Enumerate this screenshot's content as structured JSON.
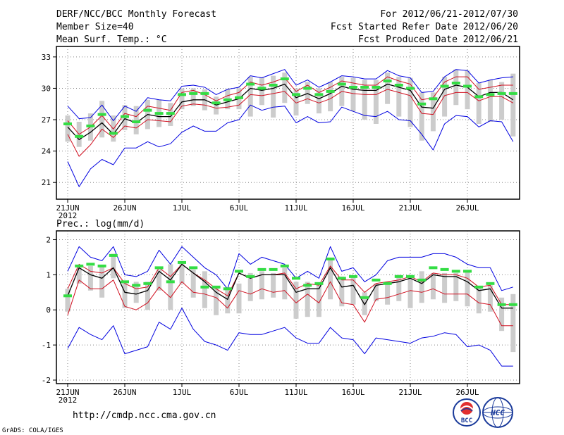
{
  "header": {
    "title": "DERF/NCC/BCC Monthly Forecast",
    "member": "Member Size=40",
    "variable": "Mean Surf. Temp.: °C",
    "period": "For 2012/06/21-2012/07/30",
    "started": "Fcst Started Refer Date 2012/06/20",
    "produced": "Fcst Produced Date 2012/06/21"
  },
  "footer": {
    "url": "http://cmdp.ncc.cma.gov.cn",
    "credit": "GrADS: COLA/IGES",
    "logo1": "BCC",
    "logo2": "NCC"
  },
  "colors": {
    "max_min": "#0000e0",
    "spread": "#d01020",
    "median": "#000000",
    "mean_mark": "#33dd44",
    "box": "#cccccc",
    "grid": "#888888"
  },
  "chart_data": [
    {
      "type": "line",
      "title": "Mean Surf. Temp.: °C",
      "ylim": [
        19.4,
        34
      ],
      "yticks": [
        21,
        24,
        27,
        30,
        33
      ],
      "xticks": [
        {
          "day": 0,
          "label": "21JUN"
        },
        {
          "day": 5,
          "label": "26JUN"
        },
        {
          "day": 10,
          "label": "1JUL"
        },
        {
          "day": 15,
          "label": "6JUL"
        },
        {
          "day": 20,
          "label": "11JUL"
        },
        {
          "day": 25,
          "label": "16JUL"
        },
        {
          "day": 30,
          "label": "21JUL"
        },
        {
          "day": 35,
          "label": "26JUL"
        }
      ],
      "year_label": "2012",
      "x": [
        0,
        1,
        2,
        3,
        4,
        5,
        6,
        7,
        8,
        9,
        10,
        11,
        12,
        13,
        14,
        15,
        16,
        17,
        18,
        19,
        20,
        21,
        22,
        23,
        24,
        25,
        26,
        27,
        28,
        29,
        30,
        31,
        32,
        33,
        34,
        35,
        36,
        37,
        38,
        39
      ],
      "max": [
        28.3,
        27.1,
        27.2,
        28.4,
        26.9,
        28.3,
        27.8,
        29.1,
        28.9,
        28.8,
        30.2,
        30.3,
        30.1,
        29.4,
        29.9,
        30.1,
        31.2,
        31.0,
        31.4,
        31.8,
        30.3,
        30.8,
        30.1,
        30.6,
        31.2,
        31.1,
        30.9,
        30.9,
        31.7,
        31.2,
        31.0,
        29.6,
        29.7,
        31.1,
        31.8,
        31.7,
        30.5,
        30.8,
        31.0,
        31.1
      ],
      "upper": [
        26.9,
        25.6,
        26.3,
        27.4,
        26.1,
        27.6,
        27.3,
        28.3,
        28.1,
        27.9,
        29.6,
        29.8,
        29.4,
        28.8,
        29.3,
        29.6,
        30.6,
        30.3,
        30.6,
        31.0,
        29.7,
        30.3,
        29.6,
        30.1,
        30.7,
        30.5,
        30.3,
        30.3,
        31.1,
        30.7,
        30.4,
        28.9,
        29.1,
        30.6,
        31.1,
        31.1,
        29.9,
        30.1,
        30.3,
        30.3
      ],
      "median": [
        26.3,
        25.1,
        25.8,
        26.7,
        25.6,
        27.1,
        26.7,
        27.5,
        27.3,
        27.3,
        28.7,
        28.9,
        28.9,
        28.4,
        28.7,
        29.0,
        30.0,
        29.8,
        30.0,
        30.4,
        29.1,
        29.5,
        29.0,
        29.5,
        30.2,
        29.9,
        29.8,
        29.8,
        30.4,
        30.1,
        29.8,
        28.2,
        28.1,
        29.9,
        30.3,
        30.1,
        29.2,
        29.6,
        29.6,
        28.9
      ],
      "lower": [
        25.6,
        23.5,
        24.6,
        26.1,
        25.3,
        26.4,
        26.2,
        27.0,
        26.9,
        26.8,
        28.3,
        28.5,
        28.4,
        28.1,
        28.2,
        28.4,
        29.4,
        29.3,
        29.5,
        29.7,
        28.6,
        29.0,
        28.6,
        29.0,
        29.7,
        29.5,
        29.4,
        29.4,
        29.9,
        29.6,
        29.3,
        27.6,
        27.5,
        29.3,
        29.6,
        29.6,
        28.8,
        29.2,
        29.2,
        28.6
      ],
      "min": [
        23.0,
        20.6,
        22.3,
        23.2,
        22.7,
        24.3,
        24.3,
        24.9,
        24.4,
        24.7,
        25.8,
        26.4,
        25.9,
        25.9,
        26.7,
        27.0,
        28.4,
        27.9,
        28.2,
        28.3,
        26.7,
        27.3,
        26.7,
        26.8,
        28.2,
        27.8,
        27.4,
        27.3,
        27.8,
        27.0,
        26.9,
        25.6,
        24.1,
        26.6,
        27.4,
        27.3,
        26.3,
        26.9,
        26.8,
        24.9
      ],
      "box_top": [
        27.4,
        26.8,
        27.6,
        28.8,
        27.4,
        28.4,
        28.3,
        28.9,
        28.9,
        28.6,
        30.0,
        30.0,
        29.9,
        29.2,
        29.9,
        30.0,
        31.1,
        31.0,
        31.2,
        31.5,
        30.0,
        30.6,
        30.0,
        30.6,
        31.1,
        31.0,
        30.8,
        30.8,
        31.5,
        31.1,
        31.0,
        29.6,
        29.6,
        31.1,
        31.8,
        31.7,
        30.5,
        30.8,
        30.6,
        31.4
      ],
      "box_bottom": [
        24.9,
        24.4,
        25.0,
        25.3,
        24.9,
        26.0,
        25.6,
        26.1,
        26.3,
        26.4,
        28.0,
        28.3,
        27.9,
        27.5,
        28.0,
        28.0,
        27.3,
        28.4,
        27.2,
        28.6,
        27.4,
        28.5,
        27.6,
        27.8,
        28.3,
        27.8,
        27.0,
        26.6,
        28.5,
        27.3,
        26.3,
        25.0,
        25.9,
        27.3,
        28.4,
        28.0,
        26.6,
        26.8,
        27.0,
        25.4
      ],
      "mean": [
        26.6,
        25.4,
        26.4,
        27.5,
        25.7,
        27.3,
        26.8,
        27.9,
        27.6,
        27.6,
        29.4,
        29.5,
        29.5,
        28.6,
        28.9,
        29.1,
        30.4,
        30.0,
        30.3,
        30.9,
        29.4,
        30.0,
        29.4,
        29.7,
        30.4,
        30.1,
        30.1,
        30.1,
        30.7,
        30.3,
        30.0,
        28.5,
        29.0,
        30.2,
        30.5,
        30.2,
        29.2,
        29.4,
        29.5,
        29.5
      ],
      "series_names": [
        "max",
        "upper",
        "median",
        "lower",
        "min",
        "mean"
      ]
    },
    {
      "type": "line",
      "title": "Prec.: log(mm/d)",
      "ylim": [
        -2.1,
        2.25
      ],
      "yticks": [
        -2,
        -1,
        0,
        1,
        2
      ],
      "xticks": [
        {
          "day": 0,
          "label": "21JUN"
        },
        {
          "day": 5,
          "label": "26JUN"
        },
        {
          "day": 10,
          "label": "1JUL"
        },
        {
          "day": 15,
          "label": "6JUL"
        },
        {
          "day": 20,
          "label": "11JUL"
        },
        {
          "day": 25,
          "label": "16JUL"
        },
        {
          "day": 30,
          "label": "21JUL"
        },
        {
          "day": 35,
          "label": "26JUL"
        }
      ],
      "year_label": "2012",
      "x": [
        0,
        1,
        2,
        3,
        4,
        5,
        6,
        7,
        8,
        9,
        10,
        11,
        12,
        13,
        14,
        15,
        16,
        17,
        18,
        19,
        20,
        21,
        22,
        23,
        24,
        25,
        26,
        27,
        28,
        29,
        30,
        31,
        32,
        33,
        34,
        35,
        36,
        37,
        38,
        39
      ],
      "max": [
        1.1,
        1.8,
        1.5,
        1.4,
        1.8,
        1.0,
        0.95,
        1.1,
        1.7,
        1.3,
        1.8,
        1.5,
        1.2,
        1.0,
        0.6,
        1.6,
        1.3,
        1.5,
        1.4,
        1.3,
        0.9,
        1.1,
        0.9,
        1.8,
        1.1,
        1.2,
        0.8,
        1.0,
        1.4,
        1.5,
        1.5,
        1.5,
        1.6,
        1.6,
        1.5,
        1.3,
        1.2,
        1.2,
        0.55,
        0.65
      ],
      "upper": [
        0.6,
        1.3,
        1.1,
        1.05,
        1.2,
        0.75,
        0.6,
        0.65,
        1.2,
        0.95,
        1.3,
        1.05,
        0.85,
        0.6,
        0.4,
        1.05,
        0.9,
        1.0,
        1.0,
        1.05,
        0.6,
        0.75,
        0.7,
        1.25,
        0.85,
        0.85,
        0.5,
        0.75,
        0.8,
        0.85,
        0.95,
        0.8,
        1.05,
        1.0,
        1.0,
        0.9,
        0.65,
        0.7,
        0.15,
        0.15
      ],
      "median": [
        0.4,
        1.2,
        1.0,
        0.9,
        1.2,
        0.5,
        0.45,
        0.55,
        1.1,
        0.85,
        1.3,
        1.05,
        0.8,
        0.5,
        0.3,
        1.05,
        0.9,
        1.0,
        1.0,
        1.0,
        0.5,
        0.6,
        0.6,
        1.2,
        0.65,
        0.7,
        0.15,
        0.7,
        0.75,
        0.8,
        0.9,
        0.75,
        1.0,
        0.95,
        0.95,
        0.8,
        0.55,
        0.6,
        0.05,
        0.05
      ],
      "lower": [
        -0.15,
        0.85,
        0.6,
        0.6,
        0.85,
        0.1,
        0.0,
        0.2,
        0.65,
        0.35,
        0.8,
        0.5,
        0.45,
        0.35,
        0.05,
        0.55,
        0.45,
        0.6,
        0.5,
        0.55,
        0.2,
        0.45,
        0.2,
        0.8,
        0.2,
        0.15,
        -0.35,
        0.3,
        0.35,
        0.45,
        0.55,
        0.5,
        0.6,
        0.45,
        0.45,
        0.45,
        0.2,
        0.15,
        -0.45,
        -0.45
      ],
      "min": [
        -1.1,
        -0.5,
        -0.7,
        -0.85,
        -0.45,
        -1.25,
        -1.15,
        -1.05,
        -0.35,
        -0.55,
        0.05,
        -0.55,
        -0.9,
        -1.0,
        -1.15,
        -0.65,
        -0.7,
        -0.7,
        -0.6,
        -0.5,
        -0.8,
        -0.95,
        -0.95,
        -0.5,
        -0.8,
        -0.85,
        -1.25,
        -0.8,
        -0.85,
        -0.9,
        -0.95,
        -0.8,
        -0.75,
        -0.65,
        -0.7,
        -1.05,
        -1.0,
        -1.15,
        -1.6,
        -1.6
      ],
      "box_top": [
        0.6,
        1.2,
        1.25,
        1.25,
        1.6,
        0.8,
        0.8,
        0.8,
        1.15,
        1.3,
        1.3,
        1.15,
        1.1,
        0.65,
        0.65,
        0.75,
        1.05,
        1.1,
        1.05,
        1.2,
        0.8,
        0.8,
        0.75,
        1.45,
        0.95,
        0.95,
        0.5,
        0.75,
        0.8,
        1.0,
        1.0,
        1.1,
        1.05,
        1.05,
        1.05,
        1.1,
        0.65,
        0.7,
        0.35,
        0.45
      ],
      "box_bottom": [
        -0.05,
        0.75,
        0.55,
        0.35,
        0.9,
        0.05,
        0.2,
        0.0,
        0.55,
        0.0,
        0.75,
        0.35,
        0.05,
        -0.15,
        -0.1,
        -0.1,
        0.25,
        0.3,
        0.35,
        0.3,
        -0.25,
        -0.2,
        -0.2,
        0.3,
        0.1,
        0.15,
        -0.15,
        0.25,
        0.15,
        0.25,
        0.05,
        0.2,
        0.3,
        0.2,
        0.25,
        0.1,
        -0.1,
        -0.05,
        -0.6,
        -1.2
      ],
      "mean": [
        0.4,
        1.25,
        1.3,
        1.25,
        1.55,
        0.8,
        0.7,
        0.75,
        1.2,
        0.8,
        1.35,
        1.2,
        0.65,
        0.65,
        0.6,
        1.1,
        0.95,
        1.15,
        1.15,
        1.25,
        0.9,
        0.7,
        0.75,
        1.45,
        0.9,
        0.95,
        0.35,
        0.85,
        0.75,
        0.95,
        0.95,
        0.85,
        1.2,
        1.15,
        1.1,
        1.1,
        0.65,
        0.75,
        0.15,
        0.15
      ],
      "series_names": [
        "max",
        "upper",
        "median",
        "lower",
        "min",
        "mean"
      ]
    }
  ]
}
